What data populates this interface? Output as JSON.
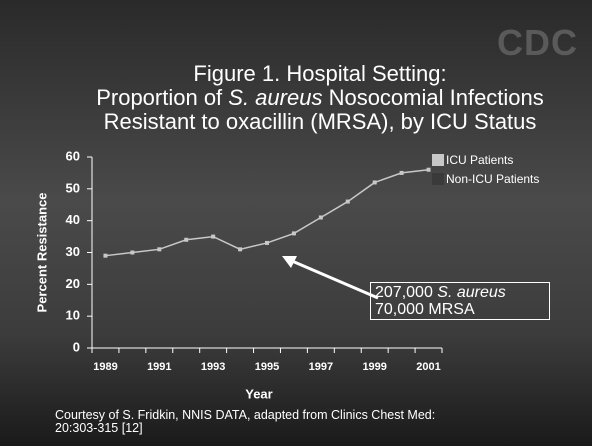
{
  "logo": "CDC",
  "chart_data": {
    "type": "line",
    "title_lines": [
      [
        "Figure 1. Hospital Setting:"
      ],
      [
        "Proportion of ",
        "S. aureus",
        " Nosocomial Infections"
      ],
      [
        "Resistant to oxacillin (MRSA), by ICU Status"
      ]
    ],
    "categories": [
      1989,
      null,
      1991,
      null,
      1993,
      null,
      1995,
      null,
      1997,
      null,
      1999,
      null,
      2001
    ],
    "series": [
      {
        "name": "ICU Patients",
        "color": "#c8c8c8",
        "values": [
          29,
          30,
          31,
          34,
          35,
          31,
          33,
          36,
          41,
          46,
          52,
          55,
          56
        ]
      },
      {
        "name": "Non-ICU Patients",
        "color": "#3a3a3a",
        "values": [
          null,
          null,
          null,
          null,
          null,
          null,
          null,
          null,
          null,
          null,
          null,
          null,
          null
        ]
      }
    ],
    "ylim": [
      0,
      60
    ],
    "yticks": [
      0,
      10,
      20,
      30,
      40,
      50,
      60
    ],
    "ylabel": "Percent Resistance",
    "xlabel": "Year",
    "annotation_lines": [
      [
        "207,000 ",
        "S. aureus"
      ],
      [
        "70,000 MRSA"
      ]
    ],
    "source": "Courtesy of S. Fridkin,  NNIS DATA, adapted from Clinics Chest Med: 20:303-315 [12]"
  }
}
